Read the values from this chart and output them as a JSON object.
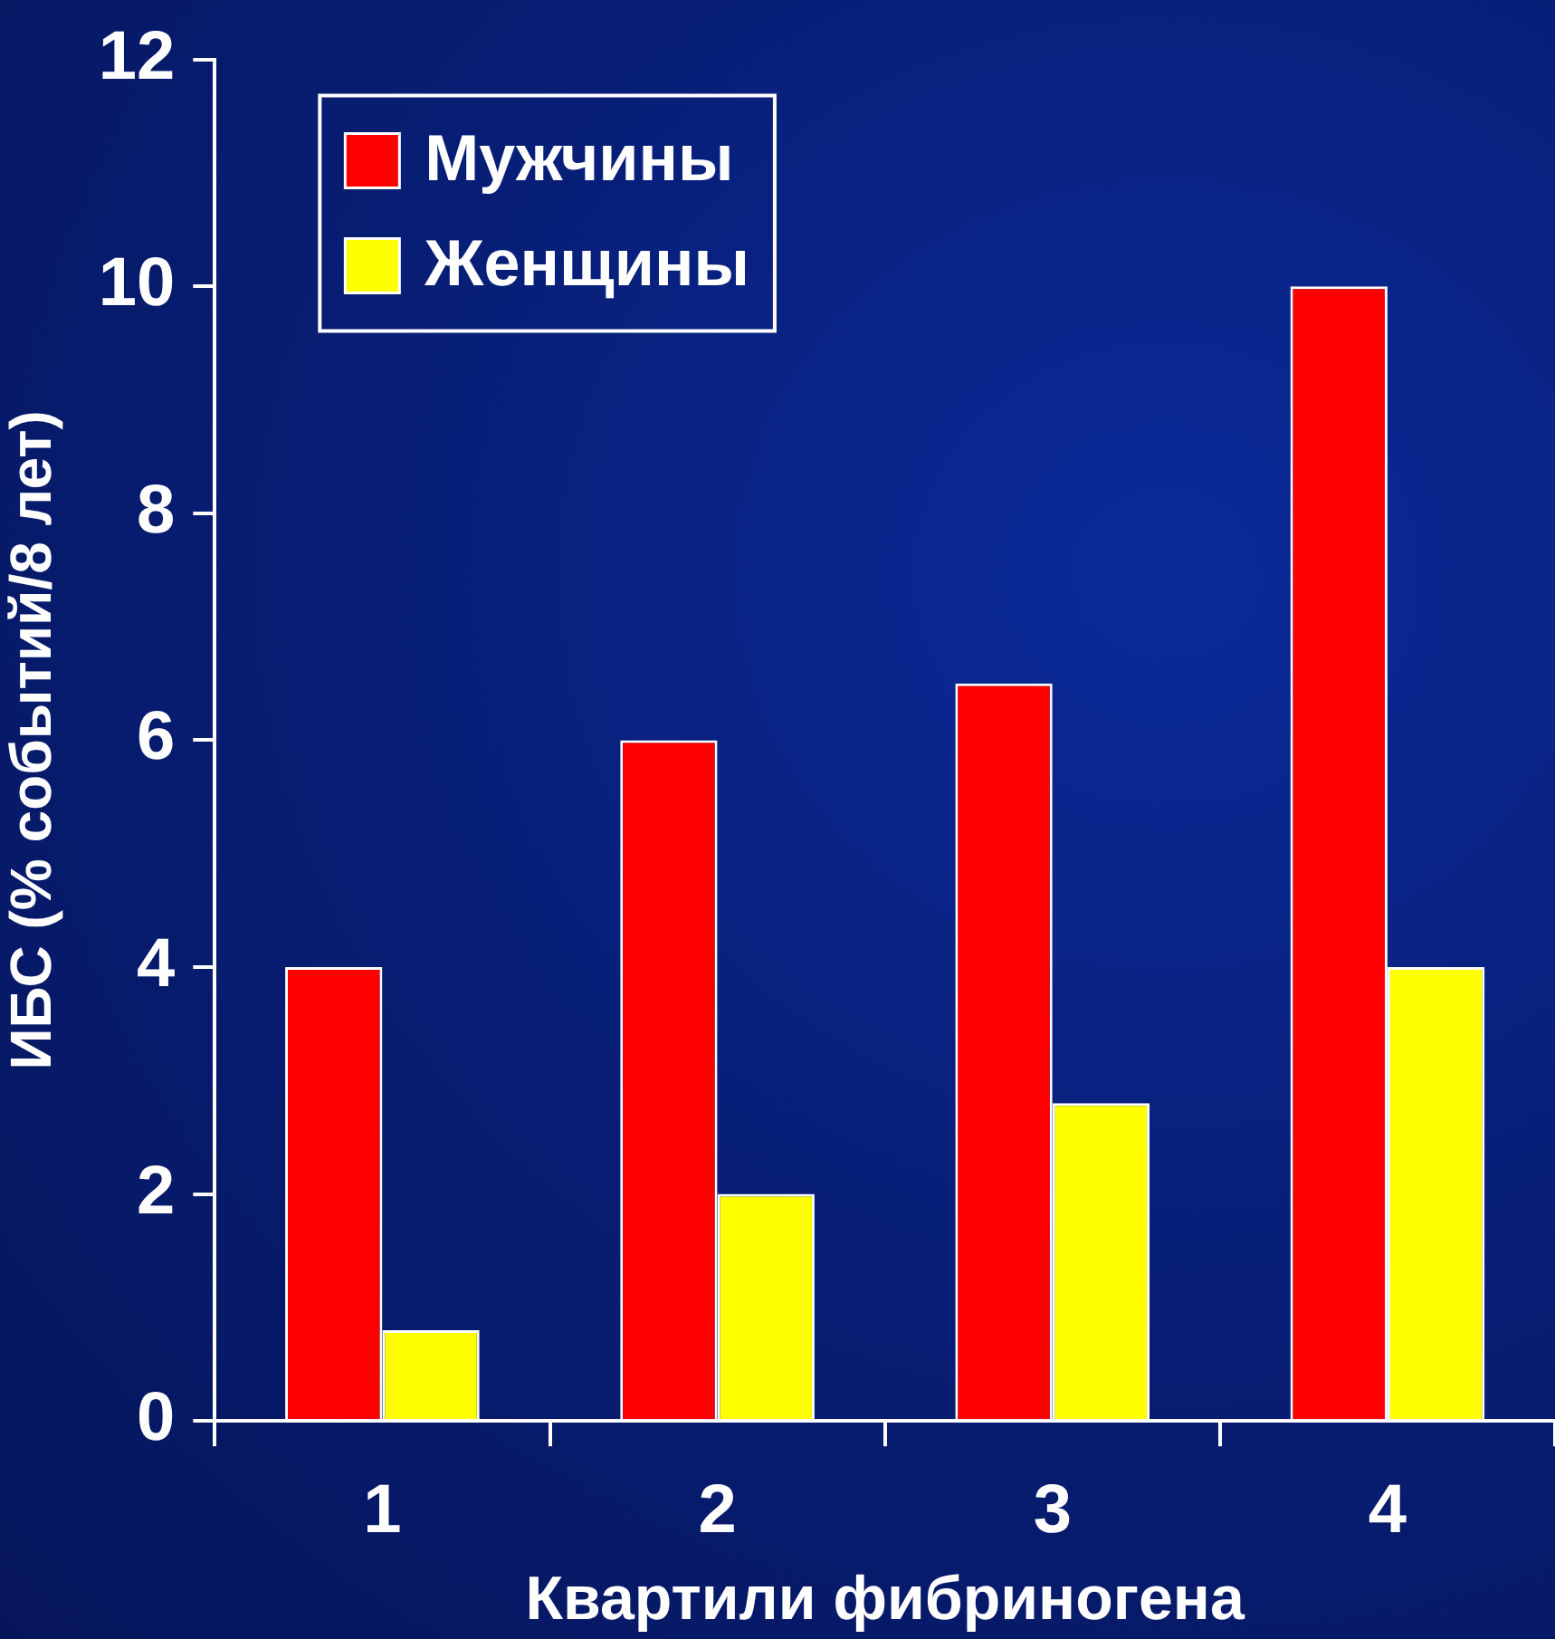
{
  "chart_data": {
    "type": "bar",
    "xlabel": "Квартили фибриногена",
    "ylabel": "ИБС (% событий/8 лет)",
    "categories": [
      "1",
      "2",
      "3",
      "4"
    ],
    "series": [
      {
        "name": "Мужчины",
        "color": "#ff0000",
        "values": [
          4,
          6,
          6.5,
          10
        ]
      },
      {
        "name": "Женщины",
        "color": "#ffff00",
        "values": [
          0.8,
          2,
          2.8,
          4
        ]
      }
    ],
    "ylim": [
      0,
      12
    ],
    "yticks": [
      0,
      2,
      4,
      6,
      8,
      10,
      12
    ],
    "grid": false,
    "legend": "top left"
  }
}
